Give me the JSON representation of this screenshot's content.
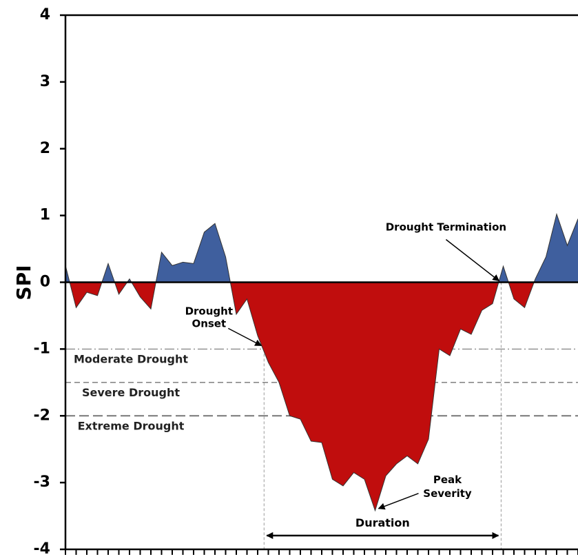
{
  "chart_data": {
    "type": "area",
    "ylabel": "SPI",
    "x": [
      0,
      1,
      2,
      3,
      4,
      5,
      6,
      7,
      8,
      9,
      10,
      11,
      12,
      13,
      14,
      15,
      16,
      17,
      18,
      19,
      20,
      21,
      22,
      23,
      24,
      25,
      26,
      27,
      28,
      29,
      30,
      31,
      32,
      33,
      34,
      35,
      36,
      37,
      38,
      39,
      40,
      41,
      42,
      43,
      44,
      45,
      46,
      47,
      48
    ],
    "values": [
      0.25,
      -0.38,
      -0.15,
      -0.2,
      0.28,
      -0.18,
      0.05,
      -0.22,
      -0.4,
      0.45,
      0.25,
      0.3,
      0.28,
      0.75,
      0.88,
      0.38,
      -0.48,
      -0.25,
      -0.8,
      -1.2,
      -1.5,
      -2.0,
      -2.05,
      -2.38,
      -2.4,
      -2.95,
      -3.05,
      -2.85,
      -2.95,
      -3.42,
      -2.9,
      -2.72,
      -2.6,
      -2.72,
      -2.35,
      -1.0,
      -1.1,
      -0.7,
      -0.78,
      -0.42,
      -0.32,
      0.24,
      -0.25,
      -0.38,
      0.05,
      0.38,
      1.02,
      0.55,
      0.95
    ],
    "positive_color": "#3f5f9e",
    "negative_color": "#c00d0d",
    "xlim": [
      0,
      48
    ],
    "xticks": [
      0,
      1,
      2,
      3,
      4,
      5,
      6,
      7,
      8,
      9,
      10,
      11,
      12,
      13,
      14,
      15,
      16,
      17,
      18,
      19,
      20,
      21,
      22,
      23,
      24,
      25,
      26,
      27,
      28,
      29,
      30,
      31,
      32,
      33,
      34,
      35,
      36,
      37,
      38,
      39,
      40,
      41,
      42,
      43,
      44,
      45,
      46,
      47,
      48
    ],
    "ylim": [
      -4,
      4
    ],
    "yticks": [
      -4,
      -3,
      -2,
      -1,
      0,
      1,
      2,
      3,
      4
    ],
    "thresholds": [
      {
        "value": -1,
        "label": "Moderate Drought"
      },
      {
        "value": -1.5,
        "label": "Severe Drought"
      },
      {
        "value": -2,
        "label": "Extreme Drought"
      }
    ],
    "onset": {
      "x": 18.6,
      "y": -1,
      "label": [
        "Drought",
        "Onset"
      ]
    },
    "termination": {
      "x": 40.8,
      "y": 0,
      "label": "Drought Termination"
    },
    "peak": {
      "x": 29,
      "y": -3.42,
      "label": [
        "Peak",
        "Severity"
      ]
    },
    "duration_label": "Duration"
  }
}
